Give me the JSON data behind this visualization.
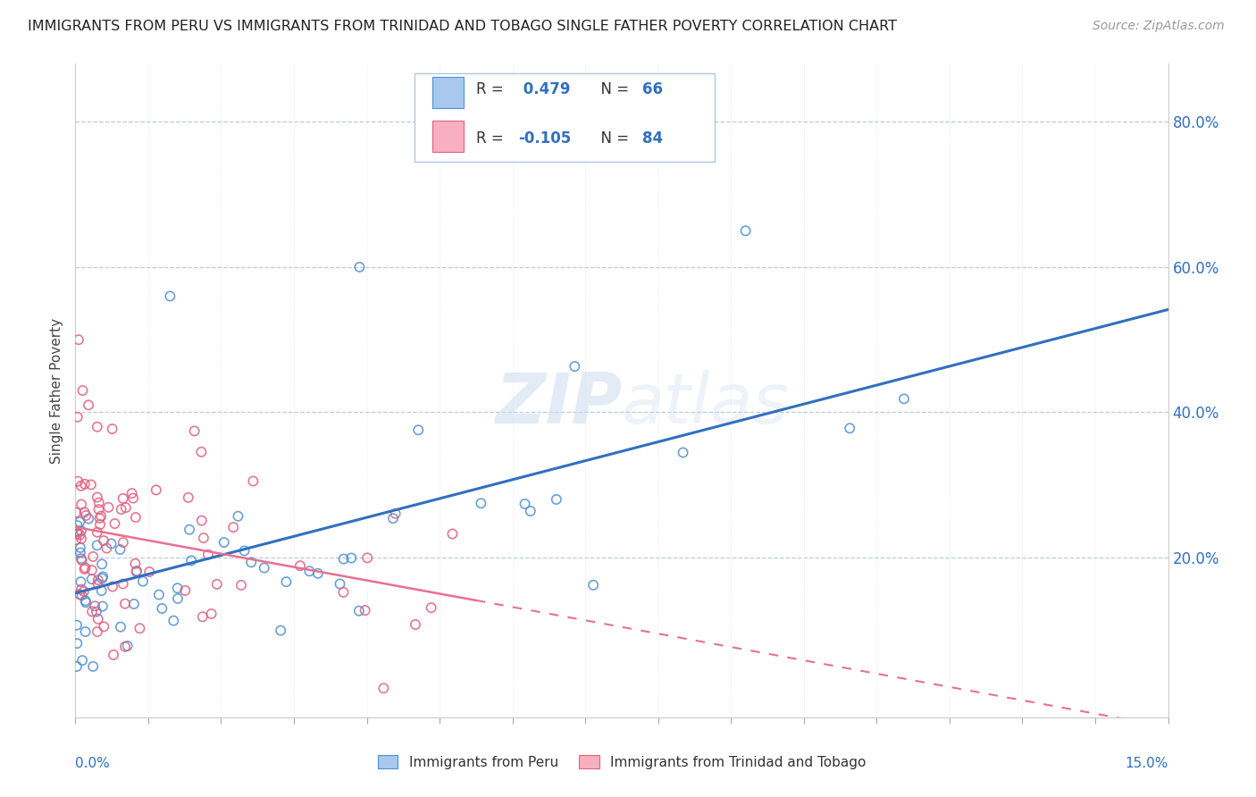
{
  "title": "IMMIGRANTS FROM PERU VS IMMIGRANTS FROM TRINIDAD AND TOBAGO SINGLE FATHER POVERTY CORRELATION CHART",
  "source": "Source: ZipAtlas.com",
  "ylabel": "Single Father Poverty",
  "xlim": [
    0.0,
    15.0
  ],
  "ylim": [
    -0.02,
    0.88
  ],
  "R_peru": 0.479,
  "N_peru": 66,
  "R_tt": -0.105,
  "N_tt": 84,
  "blue_face": "#a8c8f0",
  "blue_edge": "#5090d0",
  "pink_face": "#f8b0c0",
  "pink_edge": "#e06080",
  "blue_line": "#3070c0",
  "pink_line": "#e87090",
  "background_color": "#ffffff",
  "grid_color": "#b8cce0",
  "watermark_color": "#ccddef",
  "title_color": "#222222",
  "source_color": "#999999",
  "label_color": "#3070c0",
  "axis_label_color": "#444444"
}
